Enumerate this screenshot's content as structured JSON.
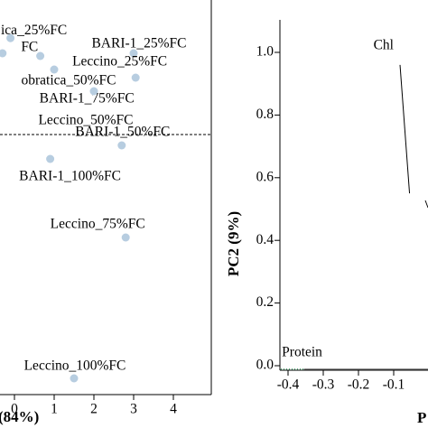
{
  "chart_data": [
    {
      "type": "scatter",
      "panel": "scores",
      "xlabel": "(84%)",
      "xlim": [
        -0.3,
        4.2
      ],
      "x_ticks": [
        "0",
        "1",
        "2",
        "3",
        "4"
      ],
      "point_color": "#b7cde0",
      "points": [
        {
          "label": "ica_25%FC",
          "x": -0.1,
          "y": 1.78
        },
        {
          "label": "FC",
          "x": -0.3,
          "y": 1.5
        },
        {
          "label": "BARI-1_25%FC",
          "x": 3.0,
          "y": 1.5
        },
        {
          "label": "Leccino_25%FC",
          "x": 0.65,
          "y": 1.45
        },
        {
          "label": "obratica_50%FC",
          "x": 1.0,
          "y": 1.2
        },
        {
          "label": "BARI-1_75%FC",
          "x": 3.05,
          "y": 1.05
        },
        {
          "label": "Leccino_50%FC",
          "x": 2.0,
          "y": 0.8
        },
        {
          "label": "BARI-1_50%FC",
          "x": 2.7,
          "y": -0.2
        },
        {
          "label": "BARI-1_100%FC",
          "x": 0.9,
          "y": -0.45
        },
        {
          "label": "Leccino_75%FC",
          "x": 2.8,
          "y": -1.9
        },
        {
          "label": "Leccino_100%FC",
          "x": 1.5,
          "y": -4.5
        }
      ]
    },
    {
      "type": "line",
      "panel": "loadings",
      "ylabel": "PC2 (9%)",
      "xlabel": "P",
      "xlim": [
        -0.43,
        -0.09
      ],
      "ylim": [
        -0.05,
        1.12
      ],
      "x_ticks": [
        "-0.4",
        "-0.3",
        "-0.2",
        "-0.1"
      ],
      "y_ticks": [
        "0.0",
        "0.2",
        "0.4",
        "0.6",
        "0.8",
        "1.0"
      ],
      "vectors": [
        {
          "label": "Chl",
          "x": -0.09,
          "y": 1.0,
          "color": "#000000"
        },
        {
          "label": "Protein",
          "x": -0.355,
          "y": -0.002,
          "color": "#2e8b57"
        }
      ]
    }
  ]
}
